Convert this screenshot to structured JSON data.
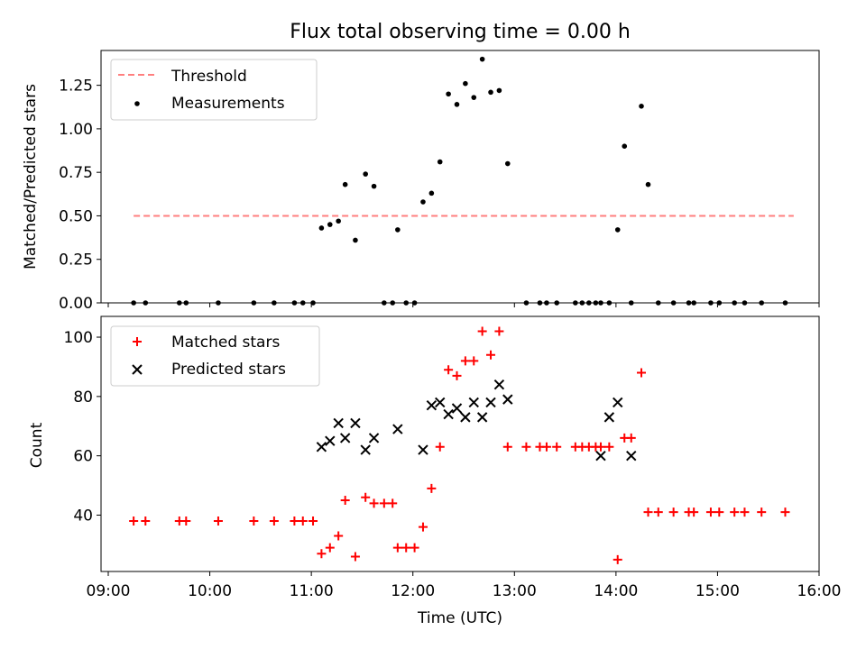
{
  "title": "Flux total observing time = 0.00 h",
  "chart_data": [
    {
      "type": "scatter",
      "panel": "top",
      "title": "Flux total observing time = 0.00 h",
      "ylabel": "Matched/Predicted stars",
      "xlim": [
        "09:00",
        "16:00"
      ],
      "ylim": [
        0,
        1.45
      ],
      "yticks": [
        "0.00",
        "0.25",
        "0.50",
        "0.75",
        "1.00",
        "1.25"
      ],
      "legend_position": "top-left",
      "series": [
        {
          "name": "Threshold",
          "kind": "dashed-line",
          "color": "#ff7f7f",
          "x": [
            "09:15",
            "15:45"
          ],
          "y": [
            0.5,
            0.5
          ]
        },
        {
          "name": "Measurements",
          "kind": "dot",
          "color": "#000000",
          "x": [
            "09:15",
            "09:22",
            "09:42",
            "09:46",
            "10:05",
            "10:26",
            "10:38",
            "10:50",
            "10:55",
            "11:01",
            "11:06",
            "11:11",
            "11:16",
            "11:20",
            "11:26",
            "11:32",
            "11:37",
            "11:43",
            "11:48",
            "11:51",
            "11:56",
            "12:01",
            "12:06",
            "12:11",
            "12:16",
            "12:21",
            "12:26",
            "12:31",
            "12:36",
            "12:41",
            "12:46",
            "12:51",
            "12:56",
            "13:07",
            "13:15",
            "13:19",
            "13:25",
            "13:36",
            "13:40",
            "13:44",
            "13:48",
            "13:51",
            "13:56",
            "14:01",
            "14:05",
            "14:09",
            "14:15",
            "14:19",
            "14:25",
            "14:34",
            "14:43",
            "14:46",
            "14:56",
            "15:01",
            "15:10",
            "15:16",
            "15:26",
            "15:40"
          ],
          "y": [
            0,
            0,
            0,
            0,
            0,
            0,
            0,
            0,
            0,
            0,
            0.43,
            0.45,
            0.47,
            0.68,
            0.36,
            0.74,
            0.67,
            0,
            0,
            0.42,
            0,
            0,
            0.58,
            0.63,
            0.81,
            1.2,
            1.14,
            1.26,
            1.18,
            1.4,
            1.21,
            1.22,
            0.8,
            0,
            0,
            0,
            0,
            0,
            0,
            0,
            0,
            0,
            0,
            0.42,
            0.9,
            0,
            1.13,
            0.68,
            0,
            0,
            0,
            0,
            0,
            0,
            0,
            0,
            0,
            0
          ]
        }
      ]
    },
    {
      "type": "scatter",
      "panel": "bottom",
      "xlabel": "Time (UTC)",
      "ylabel": "Count",
      "xlim": [
        "09:00",
        "16:00"
      ],
      "ylim": [
        21,
        107
      ],
      "xticks": [
        "09:00",
        "10:00",
        "11:00",
        "12:00",
        "13:00",
        "14:00",
        "15:00",
        "16:00"
      ],
      "yticks": [
        "40",
        "60",
        "80",
        "100"
      ],
      "legend_position": "top-left",
      "series": [
        {
          "name": "Matched stars",
          "kind": "plus",
          "color": "#ff0000",
          "x": [
            "09:15",
            "09:22",
            "09:42",
            "09:46",
            "10:05",
            "10:26",
            "10:38",
            "10:50",
            "10:55",
            "11:01",
            "11:06",
            "11:11",
            "11:16",
            "11:20",
            "11:26",
            "11:32",
            "11:37",
            "11:43",
            "11:48",
            "11:51",
            "11:56",
            "12:01",
            "12:06",
            "12:11",
            "12:16",
            "12:21",
            "12:26",
            "12:31",
            "12:36",
            "12:41",
            "12:46",
            "12:51",
            "12:56",
            "13:07",
            "13:15",
            "13:19",
            "13:25",
            "13:36",
            "13:40",
            "13:44",
            "13:48",
            "13:51",
            "13:56",
            "14:01",
            "14:05",
            "14:09",
            "14:15",
            "14:19",
            "14:25",
            "14:34",
            "14:43",
            "14:46",
            "14:56",
            "15:01",
            "15:10",
            "15:16",
            "15:26",
            "15:40"
          ],
          "y": [
            38,
            38,
            38,
            38,
            38,
            38,
            38,
            38,
            38,
            38,
            27,
            29,
            33,
            45,
            26,
            46,
            44,
            44,
            44,
            29,
            29,
            29,
            36,
            49,
            63,
            89,
            87,
            92,
            92,
            102,
            94,
            102,
            63,
            63,
            63,
            63,
            63,
            63,
            63,
            63,
            63,
            63,
            63,
            25,
            66,
            66,
            88,
            41,
            41,
            41,
            41,
            41,
            41,
            41,
            41,
            41,
            41,
            41
          ]
        },
        {
          "name": "Predicted stars",
          "kind": "x",
          "color": "#000000",
          "x": [
            "11:06",
            "11:11",
            "11:16",
            "11:20",
            "11:26",
            "11:32",
            "11:37",
            "11:51",
            "12:06",
            "12:11",
            "12:16",
            "12:21",
            "12:26",
            "12:31",
            "12:36",
            "12:41",
            "12:46",
            "12:51",
            "12:56",
            "13:51",
            "13:56",
            "14:01",
            "14:09"
          ],
          "y": [
            63,
            65,
            71,
            66,
            71,
            62,
            66,
            69,
            62,
            77,
            78,
            74,
            76,
            73,
            78,
            73,
            78,
            84,
            79,
            60,
            73,
            78,
            60
          ]
        }
      ]
    }
  ]
}
